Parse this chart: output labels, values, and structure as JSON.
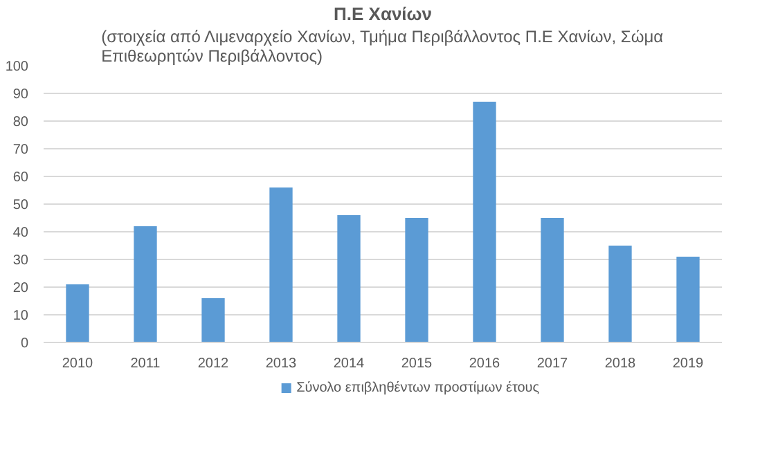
{
  "chart_data": {
    "type": "bar",
    "title": "Π.Ε Χανίων",
    "subtitle": "(στοιχεία από Λιμεναρχείο Χανίων, Τμήμα Περιβάλλοντος Π.Ε Χανίων, Σώμα Επιθεωρητών Περιβάλλοντος)",
    "categories": [
      "2010",
      "2011",
      "2012",
      "2013",
      "2014",
      "2015",
      "2016",
      "2017",
      "2018",
      "2019"
    ],
    "series": [
      {
        "name": "Σύνολο επιβληθέντων προστίμων έτους",
        "color": "#5b9bd5",
        "values": [
          21,
          42,
          16,
          56,
          46,
          45,
          87,
          45,
          35,
          31
        ]
      }
    ],
    "ylim": [
      0,
      100
    ],
    "yticks": [
      0,
      10,
      20,
      30,
      40,
      50,
      60,
      70,
      80,
      90,
      100
    ],
    "grid": "y",
    "legend": "bottom"
  }
}
